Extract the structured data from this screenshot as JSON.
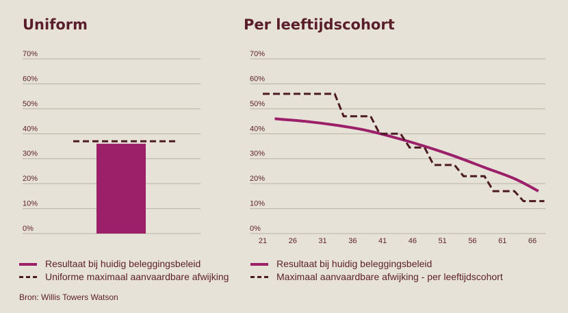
{
  "left_panel": {
    "title": "Uniform",
    "legend": [
      "Resultaat bij huidig beleggingsbeleid",
      "Uniforme maximaal aanvaardbare afwijking"
    ]
  },
  "right_panel": {
    "title": "Per leeftijdscohort",
    "legend": [
      "Resultaat bij huidig beleggingsbeleid",
      "Maximaal aanvaardbare afwijking - per leeftijdscohort"
    ]
  },
  "source": "Bron: Willis Towers Watson",
  "colors": {
    "result": "#9b1f69",
    "limit": "#4b1a22",
    "grid": "#b9b0a3",
    "text": "#5a1e2a"
  },
  "chart_data": [
    {
      "type": "bar",
      "title": "Uniform",
      "ylim": [
        0,
        70
      ],
      "y_ticks": [
        "0%",
        "10%",
        "20%",
        "30%",
        "40%",
        "50%",
        "60%",
        "70%"
      ],
      "series": [
        {
          "name": "Resultaat bij huidig beleggingsbeleid",
          "values": [
            36
          ]
        },
        {
          "name": "Uniforme maximaal aanvaardbare afwijking",
          "values": [
            37
          ]
        }
      ]
    },
    {
      "type": "line",
      "title": "Per leeftijdscohort",
      "ylim": [
        0,
        70
      ],
      "xlim": [
        21,
        68
      ],
      "y_ticks": [
        "0%",
        "10%",
        "20%",
        "30%",
        "40%",
        "50%",
        "60%",
        "70%"
      ],
      "x_ticks": [
        "21",
        "26",
        "31",
        "36",
        "41",
        "46",
        "51",
        "56",
        "61",
        "66"
      ],
      "series": [
        {
          "name": "Resultaat bij huidig beleggingsbeleid",
          "x": [
            23,
            28,
            33,
            38,
            43,
            48,
            53,
            58,
            63,
            67
          ],
          "values": [
            46,
            45,
            43.5,
            41.5,
            38.5,
            35,
            31,
            26.5,
            22,
            17
          ]
        },
        {
          "name": "Maximaal aanvaardbare afwijking - per leeftijdscohort",
          "x": [
            21,
            33,
            34.5,
            39,
            40.5,
            44,
            45.5,
            48,
            49.5,
            53,
            54.5,
            58,
            59.5,
            63,
            64.5,
            66.5,
            68
          ],
          "values": [
            56,
            56,
            47,
            47,
            40,
            40,
            34.5,
            34.5,
            27.5,
            27.5,
            23,
            23,
            17,
            17,
            13,
            13,
            13
          ]
        }
      ]
    }
  ]
}
